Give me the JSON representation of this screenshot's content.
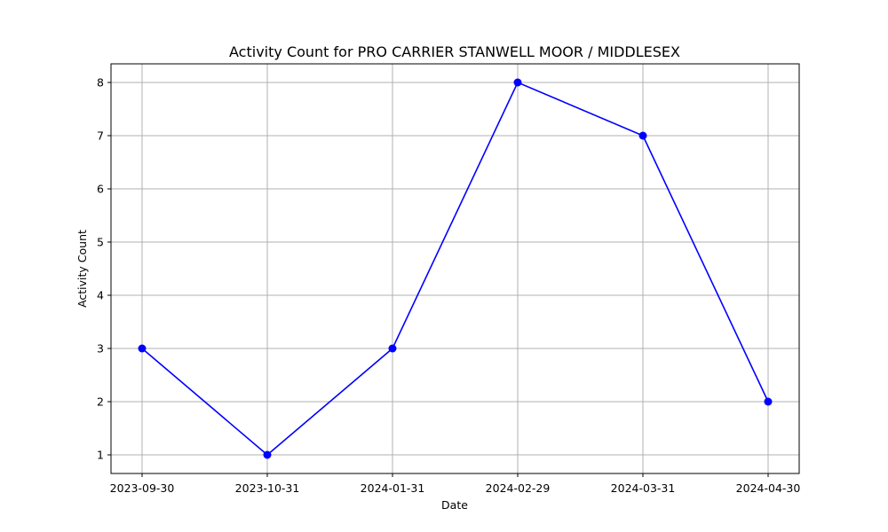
{
  "chart_data": {
    "type": "line",
    "title": "Activity Count for PRO CARRIER STANWELL MOOR / MIDDLESEX",
    "xlabel": "Date",
    "ylabel": "Activity Count",
    "x": [
      "2023-09-30",
      "2023-10-31",
      "2024-01-31",
      "2024-02-29",
      "2024-03-31",
      "2024-04-30"
    ],
    "series": [
      {
        "values": [
          3,
          1,
          3,
          8,
          7,
          2
        ],
        "color": "#0000ff",
        "marker": "circle"
      }
    ],
    "yticks": [
      1,
      2,
      3,
      4,
      5,
      6,
      7,
      8
    ],
    "ylim": [
      0.65,
      8.35
    ],
    "grid": true,
    "legend": "none"
  }
}
